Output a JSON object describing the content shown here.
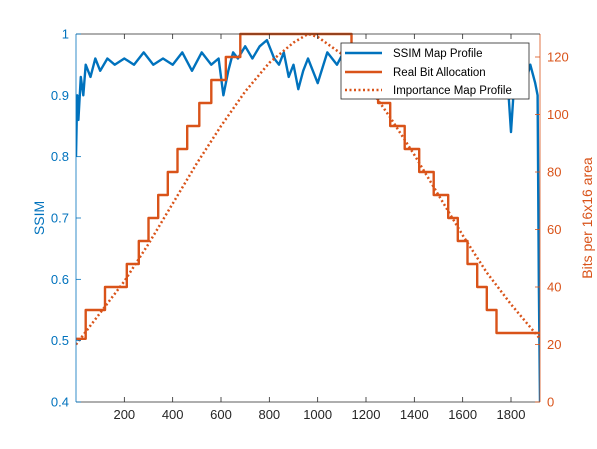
{
  "chart_data": {
    "type": "line",
    "title": "",
    "xlabel": "",
    "ylabel_left": "SSIM",
    "ylabel_right": "Bits per 16x16 area",
    "xlim": [
      0,
      1920
    ],
    "ylim_left": [
      0.4,
      1.0
    ],
    "ylim_right": [
      0,
      128
    ],
    "xticks": [
      200,
      400,
      600,
      800,
      1000,
      1200,
      1400,
      1600,
      1800
    ],
    "yticks_left": [
      0.4,
      0.5,
      0.6,
      0.7,
      0.8,
      0.9,
      1
    ],
    "yticks_right": [
      0,
      20,
      40,
      60,
      80,
      100,
      120
    ],
    "grid": false,
    "legend": "top-right",
    "colors": {
      "ssim": "#0072BD",
      "bits": "#D95319",
      "axis": "#262626"
    },
    "series": [
      {
        "name": "SSIM Map Profile",
        "axis": "left",
        "style": "solid",
        "x": [
          0,
          5,
          10,
          20,
          30,
          40,
          60,
          80,
          100,
          130,
          160,
          200,
          240,
          280,
          320,
          360,
          400,
          440,
          480,
          520,
          560,
          590,
          610,
          630,
          650,
          670,
          700,
          730,
          760,
          790,
          820,
          840,
          860,
          880,
          900,
          920,
          940,
          960,
          1000,
          1040,
          1080,
          1120,
          1160,
          1200,
          1240,
          1280,
          1320,
          1360,
          1400,
          1440,
          1480,
          1520,
          1560,
          1600,
          1640,
          1680,
          1720,
          1760,
          1790,
          1800,
          1810,
          1820,
          1840,
          1860,
          1880,
          1900,
          1910,
          1915,
          1920
        ],
        "values": [
          0.8,
          0.9,
          0.86,
          0.93,
          0.9,
          0.95,
          0.93,
          0.96,
          0.94,
          0.96,
          0.95,
          0.96,
          0.95,
          0.97,
          0.95,
          0.96,
          0.95,
          0.97,
          0.94,
          0.97,
          0.95,
          0.96,
          0.9,
          0.94,
          0.97,
          0.96,
          0.98,
          0.96,
          0.98,
          0.99,
          0.96,
          0.95,
          0.97,
          0.93,
          0.95,
          0.91,
          0.94,
          0.96,
          0.92,
          0.97,
          0.95,
          0.98,
          0.96,
          0.97,
          0.95,
          0.96,
          0.97,
          0.95,
          0.96,
          0.98,
          0.95,
          0.96,
          0.97,
          0.96,
          0.95,
          0.97,
          0.96,
          0.94,
          0.9,
          0.84,
          0.9,
          0.94,
          0.96,
          0.92,
          0.95,
          0.92,
          0.9,
          0.6,
          0.4
        ]
      },
      {
        "name": "Real Bit Allocation",
        "axis": "right",
        "style": "step",
        "x": [
          0,
          40,
          40,
          120,
          120,
          210,
          210,
          260,
          260,
          300,
          300,
          340,
          340,
          380,
          380,
          420,
          420,
          460,
          460,
          510,
          510,
          560,
          560,
          620,
          620,
          680,
          680,
          730,
          730,
          780,
          780,
          860,
          860,
          1140,
          1140,
          1200,
          1200,
          1250,
          1250,
          1300,
          1300,
          1360,
          1360,
          1420,
          1420,
          1480,
          1480,
          1540,
          1540,
          1580,
          1580,
          1620,
          1620,
          1660,
          1660,
          1700,
          1700,
          1740,
          1740,
          1820,
          1820,
          1880,
          1880,
          1920
        ],
        "values": [
          22,
          22,
          32,
          32,
          40,
          40,
          48,
          48,
          56,
          56,
          64,
          64,
          72,
          72,
          80,
          80,
          88,
          88,
          96,
          96,
          104,
          104,
          112,
          112,
          120,
          120,
          128,
          128,
          128,
          128,
          128,
          128,
          128,
          128,
          120,
          120,
          112,
          112,
          104,
          104,
          96,
          96,
          88,
          88,
          80,
          80,
          72,
          72,
          64,
          64,
          56,
          56,
          48,
          48,
          40,
          40,
          32,
          32,
          24,
          24,
          24,
          24,
          24,
          24
        ]
      },
      {
        "name": "Importance Map Profile",
        "axis": "right",
        "style": "dotted",
        "x": [
          0,
          100,
          200,
          300,
          400,
          500,
          600,
          700,
          800,
          900,
          960,
          1000,
          1100,
          1200,
          1300,
          1400,
          1500,
          1600,
          1700,
          1800,
          1920
        ],
        "values": [
          20,
          31,
          42,
          55,
          69,
          83,
          96,
          108,
          118,
          125,
          128,
          127,
          121,
          111,
          99,
          86,
          72,
          58,
          45,
          34,
          22
        ]
      }
    ]
  }
}
